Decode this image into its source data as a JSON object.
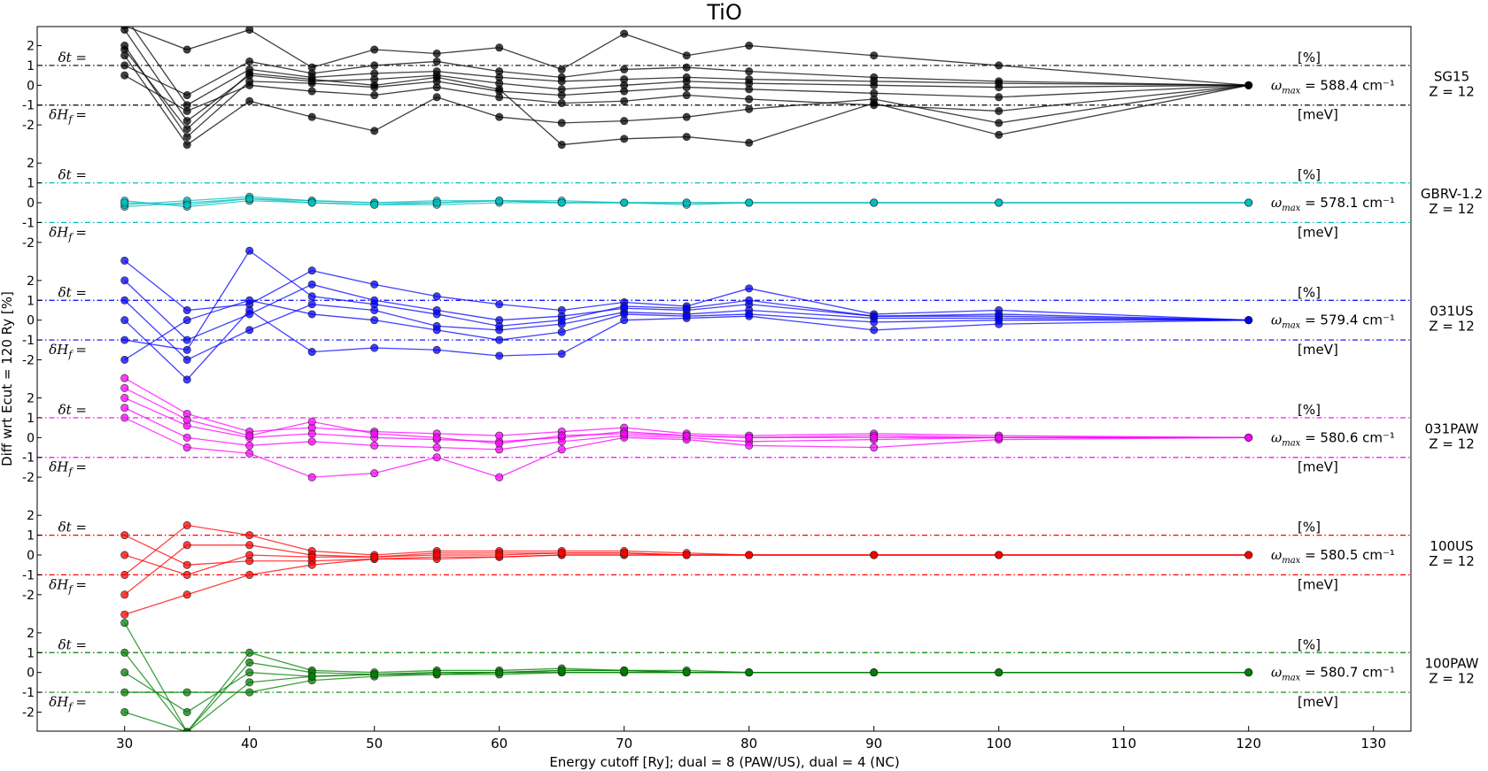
{
  "chart_data": {
    "type": "line",
    "title": "TiO",
    "xlabel": "Energy cutoff [Ry]; dual = 8 (PAW/US), dual = 4 (NC)",
    "ylabel": "Diff wrt Ecut = 120 Ry [%]",
    "xlim": [
      23,
      133
    ],
    "xticks": [
      30,
      40,
      50,
      60,
      70,
      80,
      90,
      100,
      110,
      120,
      130
    ],
    "x": [
      30,
      35,
      40,
      45,
      50,
      55,
      60,
      65,
      70,
      75,
      80,
      90,
      100,
      120
    ],
    "panel_ylim": [
      -3,
      3
    ],
    "panel_yticks": [
      "2",
      "1",
      "0",
      "-1",
      "-2"
    ],
    "delta_t_label": "δt =",
    "delta_h_label": "δH",
    "delta_h_sub": "f",
    "delta_h_eq": "=",
    "percent_label": "[%]",
    "mev_label": "[meV]",
    "omega_label": "ω",
    "omega_sub": "max",
    "omega_unit": "cm⁻¹",
    "threshold": 1,
    "series": [
      {
        "name": "SG15",
        "z": "Z = 12",
        "color": "#000000",
        "omega_max": "588.4",
        "curves": [
          [
            3.5,
            -1.0,
            0.8,
            0.4,
            0.6,
            0.7,
            0.4,
            0.2,
            0.3,
            0.4,
            0.3,
            0.2,
            0.1,
            0
          ],
          [
            2.8,
            -1.8,
            0.5,
            0.2,
            0.3,
            0.5,
            0.1,
            -0.2,
            0.0,
            0.2,
            0.1,
            0.0,
            -0.1,
            0
          ],
          [
            2.0,
            -2.6,
            0.2,
            0.1,
            -0.1,
            0.2,
            -0.3,
            -0.5,
            -0.3,
            -0.1,
            -0.2,
            -0.4,
            -0.6,
            0
          ],
          [
            1.5,
            -3.0,
            -0.8,
            -1.6,
            -2.3,
            -0.6,
            -1.6,
            -1.9,
            -1.8,
            -1.6,
            -1.2,
            -0.7,
            -1.9,
            0
          ],
          [
            3.0,
            1.8,
            2.8,
            0.9,
            1.8,
            1.6,
            1.9,
            0.8,
            2.6,
            1.5,
            2.0,
            1.5,
            1.0,
            0
          ],
          [
            1.0,
            -0.5,
            1.2,
            0.6,
            1.0,
            1.2,
            0.7,
            0.4,
            0.8,
            0.9,
            0.7,
            0.4,
            0.2,
            0
          ],
          [
            0.5,
            -1.3,
            0.0,
            -0.3,
            -0.5,
            -0.1,
            -0.6,
            -0.9,
            -0.8,
            -0.5,
            -0.7,
            -1.0,
            -1.3,
            0
          ],
          [
            1.8,
            -2.2,
            0.6,
            0.3,
            0.0,
            0.4,
            -0.2,
            -3.0,
            -2.7,
            -2.6,
            -2.9,
            -0.9,
            -2.5,
            0
          ]
        ]
      },
      {
        "name": "GBRV-1.2",
        "z": "Z = 12",
        "color": "#00bfbf",
        "omega_max": "578.1",
        "curves": [
          [
            -0.2,
            0.0,
            0.2,
            0.1,
            0.0,
            0.0,
            0.1,
            0.1,
            0.0,
            0.0,
            0.0,
            0.0,
            0.0,
            0
          ],
          [
            -0.1,
            0.1,
            0.3,
            0.1,
            0.0,
            0.1,
            0.1,
            0.0,
            0.0,
            0.0,
            0.0,
            0.0,
            0.0,
            0
          ],
          [
            0.1,
            -0.2,
            0.1,
            0.0,
            -0.1,
            -0.1,
            0.0,
            0.0,
            0.0,
            -0.1,
            0.0,
            0.0,
            0.0,
            0
          ],
          [
            0.0,
            -0.1,
            0.2,
            0.0,
            -0.1,
            0.0,
            0.1,
            0.0,
            0.0,
            0.0,
            0.0,
            0.0,
            0.0,
            0
          ]
        ]
      },
      {
        "name": "031US",
        "z": "Z = 12",
        "color": "#0000ff",
        "omega_max": "579.4",
        "curves": [
          [
            3.0,
            0.5,
            0.8,
            2.5,
            1.8,
            1.2,
            0.8,
            0.5,
            0.9,
            0.7,
            1.6,
            0.3,
            0.5,
            0
          ],
          [
            2.0,
            -1.0,
            0.3,
            1.8,
            1.0,
            0.5,
            0.0,
            0.2,
            0.6,
            0.5,
            0.8,
            0.2,
            0.3,
            0
          ],
          [
            1.0,
            -2.0,
            -0.5,
            0.8,
            0.5,
            -0.3,
            -0.5,
            -0.2,
            0.4,
            0.3,
            0.5,
            0.1,
            0.1,
            0
          ],
          [
            0.0,
            -3.0,
            0.5,
            -1.6,
            -1.4,
            -1.5,
            -1.8,
            -1.7,
            0.0,
            0.1,
            0.2,
            -0.5,
            -0.2,
            0
          ],
          [
            -1.0,
            -1.5,
            3.5,
            1.2,
            0.8,
            0.3,
            -0.3,
            0.0,
            0.7,
            0.6,
            1.0,
            0.2,
            0.2,
            0
          ],
          [
            -2.0,
            0.0,
            1.0,
            0.3,
            0.0,
            -0.5,
            -1.0,
            -0.6,
            0.3,
            0.2,
            0.3,
            -0.1,
            0.0,
            0
          ]
        ]
      },
      {
        "name": "031PAW",
        "z": "Z = 12",
        "color": "#ff00ff",
        "omega_max": "580.6",
        "curves": [
          [
            3.0,
            1.2,
            0.3,
            0.5,
            0.3,
            0.2,
            0.1,
            0.3,
            0.5,
            0.2,
            0.1,
            0.2,
            0.1,
            0
          ],
          [
            2.0,
            0.6,
            0.0,
            0.2,
            0.0,
            -0.1,
            -0.2,
            0.0,
            0.3,
            0.1,
            0.0,
            0.1,
            0.0,
            0
          ],
          [
            1.5,
            0.0,
            -0.4,
            -0.2,
            -0.4,
            -0.5,
            -0.6,
            -0.2,
            0.1,
            0.0,
            -0.2,
            -0.1,
            0.0,
            0
          ],
          [
            1.0,
            -0.5,
            -0.8,
            -2.0,
            -1.8,
            -1.0,
            -2.0,
            -0.6,
            0.0,
            -0.1,
            -0.4,
            -0.5,
            -0.1,
            0
          ],
          [
            2.5,
            0.9,
            0.1,
            0.8,
            0.2,
            0.0,
            -0.3,
            0.1,
            0.2,
            0.1,
            0.0,
            0.0,
            0.0,
            0
          ]
        ]
      },
      {
        "name": "100US",
        "z": "Z = 12",
        "color": "#ff0000",
        "omega_max": "580.5",
        "curves": [
          [
            -1.0,
            1.5,
            1.0,
            0.2,
            0.0,
            0.2,
            0.2,
            0.2,
            0.2,
            0.1,
            0.0,
            0.0,
            0.0,
            0
          ],
          [
            -2.0,
            0.5,
            0.5,
            0.0,
            -0.1,
            0.1,
            0.1,
            0.1,
            0.1,
            0.0,
            0.0,
            0.0,
            0.0,
            0
          ],
          [
            1.0,
            -0.5,
            -0.3,
            -0.3,
            -0.2,
            -0.1,
            -0.1,
            0.0,
            0.0,
            0.0,
            0.0,
            0.0,
            0.0,
            0
          ],
          [
            -3.0,
            -2.0,
            -1.0,
            -0.5,
            -0.2,
            -0.2,
            -0.1,
            0.0,
            0.0,
            0.0,
            0.0,
            0.0,
            0.0,
            0
          ],
          [
            0.0,
            -1.0,
            0.0,
            -0.1,
            -0.1,
            0.0,
            0.0,
            0.1,
            0.1,
            0.0,
            0.0,
            0.0,
            0.0,
            0
          ]
        ]
      },
      {
        "name": "100PAW",
        "z": "Z = 12",
        "color": "#008000",
        "omega_max": "580.7",
        "curves": [
          [
            2.5,
            -3.0,
            1.0,
            0.1,
            0.0,
            0.1,
            0.1,
            0.2,
            0.1,
            0.1,
            0.0,
            0.0,
            0.0,
            0
          ],
          [
            1.0,
            -3.0,
            0.5,
            0.0,
            -0.1,
            0.0,
            0.0,
            0.1,
            0.1,
            0.0,
            0.0,
            0.0,
            0.0,
            0
          ],
          [
            0.0,
            -2.0,
            0.0,
            -0.2,
            -0.1,
            -0.1,
            0.0,
            0.0,
            0.0,
            0.0,
            0.0,
            0.0,
            0.0,
            0
          ],
          [
            -1.0,
            -1.0,
            -1.0,
            -0.4,
            -0.2,
            -0.1,
            -0.1,
            0.0,
            0.0,
            0.0,
            0.0,
            0.0,
            0.0,
            0
          ],
          [
            -2.0,
            -3.0,
            -0.5,
            -0.2,
            -0.1,
            0.0,
            0.0,
            0.1,
            0.1,
            0.0,
            0.0,
            0.0,
            0.0,
            0
          ]
        ]
      }
    ]
  }
}
